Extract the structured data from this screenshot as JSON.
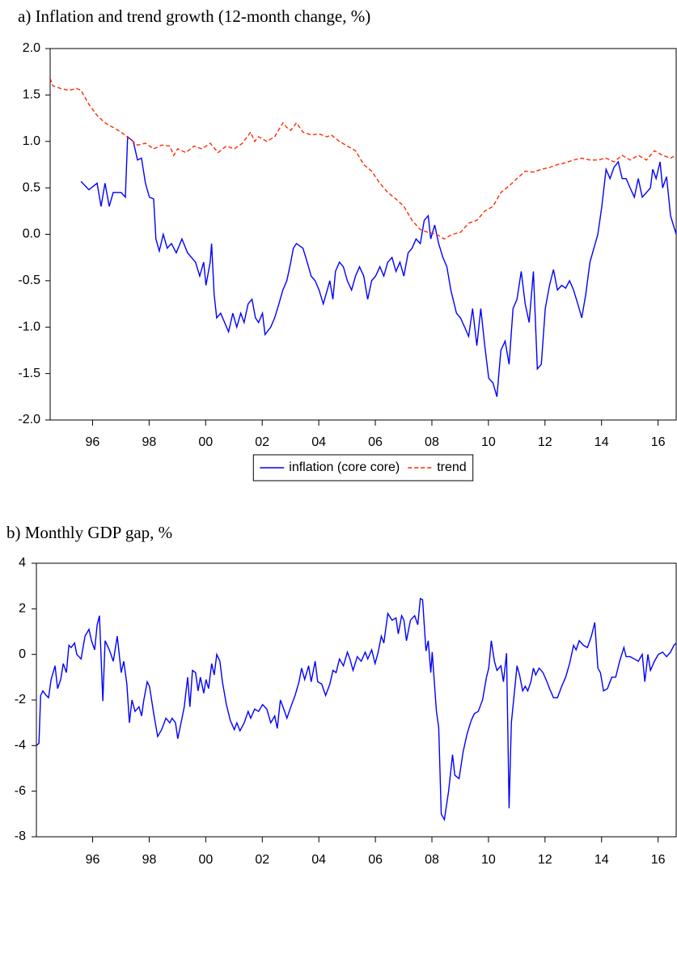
{
  "chart_data": [
    {
      "type": "line",
      "title": "a) Inflation and trend growth (12-month change, %)",
      "legend": "bottom",
      "xlim": [
        1995,
        2017.14
      ],
      "xticks": [
        {
          "value": 1996.5,
          "label": "96"
        },
        {
          "value": 1998.5,
          "label": "98"
        },
        {
          "value": 2000.5,
          "label": "00"
        },
        {
          "value": 2002.5,
          "label": "02"
        },
        {
          "value": 2004.5,
          "label": "04"
        },
        {
          "value": 2006.5,
          "label": "06"
        },
        {
          "value": 2008.5,
          "label": "08"
        },
        {
          "value": 2010.5,
          "label": "10"
        },
        {
          "value": 2012.5,
          "label": "12"
        },
        {
          "value": 2014.5,
          "label": "14"
        },
        {
          "value": 2016.5,
          "label": "16"
        }
      ],
      "ylim": [
        -2,
        2
      ],
      "yticks": [
        {
          "value": 2,
          "label": "2.0"
        },
        1.5,
        {
          "value": 1,
          "label": "1.0"
        },
        0.5,
        {
          "value": 0,
          "label": "0.0"
        },
        -0.5,
        {
          "value": -1,
          "label": "-1.0"
        },
        -1.5,
        {
          "value": -2,
          "label": "-2.0"
        }
      ],
      "series": [
        {
          "name": "inflation (core core)",
          "color": "#0000ff",
          "style": "solid",
          "x": [
            1996.09,
            1996.37,
            1996.66,
            1996.8,
            1996.94,
            1997.09,
            1997.23,
            1997.51,
            1997.66,
            1997.74,
            1997.94,
            1998.09,
            1998.23,
            1998.37,
            1998.51,
            1998.66,
            1998.74,
            1998.86,
            1999.0,
            1999.14,
            1999.29,
            1999.46,
            1999.66,
            1999.86,
            2000.0,
            2000.14,
            2000.29,
            2000.43,
            2000.51,
            2000.66,
            2000.71,
            2000.8,
            2000.89,
            2001.03,
            2001.17,
            2001.31,
            2001.46,
            2001.6,
            2001.74,
            2001.86,
            2002.0,
            2002.14,
            2002.26,
            2002.37,
            2002.51,
            2002.6,
            2002.8,
            2002.94,
            2003.09,
            2003.23,
            2003.37,
            2003.51,
            2003.6,
            2003.71,
            2003.94,
            2004.09,
            2004.23,
            2004.37,
            2004.51,
            2004.66,
            2004.8,
            2004.89,
            2005.0,
            2005.09,
            2005.23,
            2005.37,
            2005.51,
            2005.66,
            2005.8,
            2005.94,
            2006.09,
            2006.23,
            2006.37,
            2006.51,
            2006.66,
            2006.8,
            2006.94,
            2007.09,
            2007.23,
            2007.37,
            2007.51,
            2007.66,
            2007.8,
            2007.94,
            2008.09,
            2008.23,
            2008.37,
            2008.46,
            2008.6,
            2008.74,
            2008.89,
            2009.03,
            2009.17,
            2009.37,
            2009.51,
            2009.66,
            2009.8,
            2009.94,
            2010.09,
            2010.23,
            2010.37,
            2010.51,
            2010.66,
            2010.8,
            2010.94,
            2011.09,
            2011.23,
            2011.37,
            2011.51,
            2011.66,
            2011.8,
            2011.94,
            2012.09,
            2012.23,
            2012.37,
            2012.51,
            2012.66,
            2012.8,
            2012.94,
            2013.09,
            2013.23,
            2013.37,
            2013.51,
            2013.66,
            2013.8,
            2013.94,
            2014.09,
            2014.23,
            2014.37,
            2014.51,
            2014.66,
            2014.8,
            2014.94,
            2015.09,
            2015.23,
            2015.37,
            2015.51,
            2015.66,
            2015.8,
            2015.94,
            2016.09,
            2016.23,
            2016.31,
            2016.43,
            2016.57,
            2016.66,
            2016.8,
            2016.94,
            2017.14
          ],
          "values": [
            0.57,
            0.48,
            0.55,
            0.3,
            0.55,
            0.3,
            0.45,
            0.45,
            0.4,
            1.05,
            1.0,
            0.8,
            0.82,
            0.55,
            0.4,
            0.38,
            -0.05,
            -0.18,
            0.0,
            -0.15,
            -0.1,
            -0.2,
            -0.05,
            -0.2,
            -0.25,
            -0.3,
            -0.45,
            -0.3,
            -0.55,
            -0.3,
            -0.1,
            -0.65,
            -0.9,
            -0.85,
            -0.95,
            -1.05,
            -0.85,
            -1.0,
            -0.85,
            -0.95,
            -0.75,
            -0.7,
            -0.9,
            -0.95,
            -0.85,
            -1.08,
            -1.0,
            -0.9,
            -0.75,
            -0.6,
            -0.5,
            -0.3,
            -0.15,
            -0.1,
            -0.15,
            -0.3,
            -0.45,
            -0.5,
            -0.6,
            -0.75,
            -0.6,
            -0.5,
            -0.7,
            -0.4,
            -0.3,
            -0.35,
            -0.5,
            -0.6,
            -0.45,
            -0.35,
            -0.45,
            -0.7,
            -0.5,
            -0.45,
            -0.35,
            -0.45,
            -0.3,
            -0.25,
            -0.4,
            -0.3,
            -0.45,
            -0.2,
            -0.15,
            -0.05,
            -0.1,
            0.15,
            0.2,
            -0.05,
            0.1,
            -0.1,
            -0.25,
            -0.35,
            -0.6,
            -0.85,
            -0.9,
            -1.0,
            -1.1,
            -0.8,
            -1.2,
            -0.8,
            -1.2,
            -1.55,
            -1.6,
            -1.75,
            -1.25,
            -1.15,
            -1.4,
            -0.8,
            -0.7,
            -0.4,
            -0.75,
            -0.95,
            -0.4,
            -1.45,
            -1.4,
            -0.8,
            -0.55,
            -0.38,
            -0.6,
            -0.55,
            -0.58,
            -0.5,
            -0.6,
            -0.75,
            -0.9,
            -0.65,
            -0.3,
            -0.15,
            0.0,
            0.3,
            0.7,
            0.6,
            0.72,
            0.78,
            0.6,
            0.6,
            0.5,
            0.4,
            0.6,
            0.4,
            0.45,
            0.5,
            0.7,
            0.6,
            0.78,
            0.5,
            0.62,
            0.2,
            0.0
          ]
        },
        {
          "name": "trend",
          "color": "#ff2a00",
          "style": "dashed",
          "x": [
            1995.0,
            1995.09,
            1995.37,
            1995.66,
            1995.94,
            1996.09,
            1996.37,
            1996.66,
            1996.94,
            1997.23,
            1997.51,
            1997.8,
            1998.09,
            1998.37,
            1998.66,
            1998.94,
            1999.23,
            1999.37,
            1999.51,
            1999.8,
            2000.09,
            2000.37,
            2000.66,
            2000.94,
            2001.23,
            2001.51,
            2001.8,
            2002.09,
            2002.23,
            2002.37,
            2002.66,
            2002.94,
            2003.23,
            2003.37,
            2003.51,
            2003.71,
            2003.94,
            2004.23,
            2004.51,
            2004.8,
            2004.94,
            2005.23,
            2005.51,
            2005.8,
            2006.09,
            2006.37,
            2006.66,
            2006.94,
            2007.23,
            2007.51,
            2007.8,
            2008.09,
            2008.37,
            2008.66,
            2008.94,
            2009.23,
            2009.51,
            2009.8,
            2010.09,
            2010.37,
            2010.66,
            2010.94,
            2011.23,
            2011.51,
            2011.8,
            2012.09,
            2012.37,
            2012.66,
            2012.94,
            2013.23,
            2013.51,
            2013.8,
            2014.09,
            2014.37,
            2014.66,
            2014.94,
            2015.23,
            2015.51,
            2015.8,
            2016.09,
            2016.37,
            2016.66,
            2016.94,
            2017.14
          ],
          "values": [
            1.68,
            1.6,
            1.57,
            1.55,
            1.57,
            1.55,
            1.4,
            1.28,
            1.2,
            1.15,
            1.1,
            1.03,
            0.96,
            0.98,
            0.92,
            0.96,
            0.95,
            0.85,
            0.92,
            0.88,
            0.95,
            0.92,
            0.98,
            0.88,
            0.95,
            0.92,
            0.98,
            1.1,
            1.0,
            1.05,
            1.0,
            1.05,
            1.2,
            1.15,
            1.12,
            1.2,
            1.1,
            1.07,
            1.08,
            1.05,
            1.07,
            1.0,
            0.95,
            0.9,
            0.75,
            0.68,
            0.55,
            0.45,
            0.38,
            0.3,
            0.15,
            0.05,
            0.02,
            0.0,
            -0.05,
            0.0,
            0.02,
            0.12,
            0.15,
            0.25,
            0.3,
            0.45,
            0.52,
            0.6,
            0.68,
            0.67,
            0.7,
            0.72,
            0.75,
            0.77,
            0.8,
            0.82,
            0.8,
            0.8,
            0.82,
            0.78,
            0.85,
            0.8,
            0.85,
            0.8,
            0.9,
            0.85,
            0.82,
            0.85
          ]
        }
      ]
    },
    {
      "type": "line",
      "title": "b) Monthly GDP gap, %",
      "xlim": [
        1994.51,
        2017.14
      ],
      "xticks": [
        {
          "value": 1996.5,
          "label": "96"
        },
        {
          "value": 1998.5,
          "label": "98"
        },
        {
          "value": 2000.5,
          "label": "00"
        },
        {
          "value": 2002.5,
          "label": "02"
        },
        {
          "value": 2004.5,
          "label": "04"
        },
        {
          "value": 2006.5,
          "label": "06"
        },
        {
          "value": 2008.5,
          "label": "08"
        },
        {
          "value": 2010.5,
          "label": "10"
        },
        {
          "value": 2012.5,
          "label": "12"
        },
        {
          "value": 2014.5,
          "label": "14"
        },
        {
          "value": 2016.5,
          "label": "16"
        }
      ],
      "ylim": [
        -8,
        4
      ],
      "yticks": [
        4,
        2,
        0,
        -2,
        -4,
        -6,
        -8
      ],
      "series": [
        {
          "color": "#0000ff",
          "style": "solid",
          "x": [
            1994.51,
            1994.6,
            1994.66,
            1994.74,
            1994.86,
            1994.94,
            1995.03,
            1995.17,
            1995.26,
            1995.37,
            1995.46,
            1995.57,
            1995.66,
            1995.74,
            1995.86,
            1995.94,
            1996.09,
            1996.23,
            1996.37,
            1996.46,
            1996.57,
            1996.66,
            1996.74,
            1996.86,
            1996.94,
            1997.09,
            1997.23,
            1997.37,
            1997.51,
            1997.6,
            1997.71,
            1997.8,
            1997.89,
            1998.0,
            1998.14,
            1998.23,
            1998.31,
            1998.43,
            1998.51,
            1998.66,
            1998.8,
            1998.94,
            1999.09,
            1999.23,
            1999.31,
            1999.43,
            1999.51,
            1999.66,
            1999.74,
            1999.86,
            1999.94,
            2000.03,
            2000.14,
            2000.23,
            2000.31,
            2000.43,
            2000.51,
            2000.6,
            2000.71,
            2000.8,
            2000.89,
            2001.0,
            2001.09,
            2001.23,
            2001.37,
            2001.51,
            2001.6,
            2001.71,
            2001.86,
            2002.0,
            2002.09,
            2002.23,
            2002.37,
            2002.51,
            2002.66,
            2002.8,
            2002.94,
            2003.03,
            2003.14,
            2003.29,
            2003.37,
            2003.51,
            2003.66,
            2003.8,
            2003.89,
            2004.0,
            2004.14,
            2004.23,
            2004.37,
            2004.46,
            2004.6,
            2004.74,
            2004.89,
            2005.0,
            2005.11,
            2005.23,
            2005.37,
            2005.51,
            2005.6,
            2005.71,
            2005.86,
            2006.0,
            2006.14,
            2006.23,
            2006.37,
            2006.49,
            2006.6,
            2006.71,
            2006.8,
            2006.94,
            2007.09,
            2007.23,
            2007.31,
            2007.43,
            2007.51,
            2007.6,
            2007.74,
            2007.89,
            2008.0,
            2008.09,
            2008.17,
            2008.29,
            2008.37,
            2008.46,
            2008.51,
            2008.66,
            2008.74,
            2008.83,
            2008.94,
            2009.09,
            2009.23,
            2009.31,
            2009.46,
            2009.6,
            2009.74,
            2009.89,
            2010.0,
            2010.14,
            2010.29,
            2010.43,
            2010.51,
            2010.6,
            2010.71,
            2010.8,
            2010.94,
            2011.03,
            2011.14,
            2011.23,
            2011.31,
            2011.43,
            2011.51,
            2011.6,
            2011.71,
            2011.8,
            2011.89,
            2012.0,
            2012.09,
            2012.17,
            2012.29,
            2012.43,
            2012.57,
            2012.66,
            2012.8,
            2012.94,
            2013.09,
            2013.23,
            2013.37,
            2013.51,
            2013.6,
            2013.71,
            2013.86,
            2014.0,
            2014.14,
            2014.26,
            2014.37,
            2014.46,
            2014.57,
            2014.71,
            2014.86,
            2015.0,
            2015.14,
            2015.29,
            2015.37,
            2015.51,
            2015.66,
            2015.8,
            2015.94,
            2016.03,
            2016.14,
            2016.23,
            2016.37,
            2016.51,
            2016.66,
            2016.8,
            2016.94,
            2017.06,
            2017.14
          ],
          "values": [
            -4.0,
            -3.9,
            -1.8,
            -1.6,
            -1.8,
            -1.9,
            -1.1,
            -0.5,
            -1.5,
            -1.1,
            -0.4,
            -0.8,
            0.4,
            0.3,
            0.5,
            0.0,
            -0.2,
            0.8,
            1.1,
            0.6,
            0.2,
            1.3,
            1.7,
            -2.05,
            0.6,
            0.2,
            -0.3,
            0.8,
            -0.8,
            -0.3,
            -1.3,
            -3.0,
            -2.0,
            -2.5,
            -2.3,
            -2.7,
            -2.0,
            -1.2,
            -1.4,
            -2.6,
            -3.6,
            -3.3,
            -2.8,
            -3.0,
            -2.8,
            -3.0,
            -3.7,
            -2.8,
            -2.3,
            -1.0,
            -2.3,
            -0.7,
            -0.8,
            -1.6,
            -1.0,
            -1.7,
            -1.1,
            -1.5,
            -0.4,
            -0.9,
            0.0,
            -0.3,
            -1.2,
            -2.2,
            -2.9,
            -3.3,
            -3.0,
            -3.35,
            -3.0,
            -2.5,
            -2.8,
            -2.4,
            -2.5,
            -2.2,
            -2.4,
            -3.0,
            -2.7,
            -3.25,
            -2.0,
            -2.5,
            -2.8,
            -2.3,
            -1.8,
            -1.2,
            -0.6,
            -1.1,
            -0.5,
            -1.2,
            -0.3,
            -1.2,
            -1.3,
            -1.8,
            -1.3,
            -0.7,
            -0.8,
            -0.2,
            -0.5,
            0.1,
            -0.2,
            -0.7,
            -0.1,
            -0.3,
            0.1,
            -0.2,
            0.2,
            -0.4,
            0.1,
            0.8,
            0.5,
            1.8,
            1.5,
            1.6,
            0.9,
            1.7,
            1.5,
            0.6,
            1.5,
            1.7,
            1.3,
            2.45,
            2.4,
            0.15,
            0.6,
            -0.8,
            0.1,
            -2.5,
            -3.2,
            -7.0,
            -7.25,
            -6.0,
            -4.4,
            -5.3,
            -5.45,
            -4.3,
            -3.5,
            -2.9,
            -2.6,
            -2.5,
            -2.0,
            -1.0,
            -0.6,
            0.6,
            -0.3,
            -0.7,
            -0.5,
            -1.2,
            0.05,
            -6.75,
            -3.0,
            -1.5,
            -0.5,
            -0.9,
            -1.6,
            -1.4,
            -1.6,
            -1.2,
            -0.6,
            -0.9,
            -0.6,
            -0.8,
            -1.2,
            -1.5,
            -1.9,
            -1.9,
            -1.4,
            -1.0,
            -0.4,
            0.4,
            0.2,
            0.6,
            0.4,
            0.3,
            0.8,
            1.4,
            -0.6,
            -0.8,
            -1.6,
            -1.5,
            -1.0,
            -1.0,
            -0.3,
            0.3,
            -0.1,
            -0.1,
            -0.2,
            -0.3,
            0.0,
            -1.2,
            0.0,
            -0.7,
            -0.3,
            0.0,
            0.1,
            -0.1,
            0.1,
            0.4,
            0.5
          ]
        }
      ]
    }
  ]
}
